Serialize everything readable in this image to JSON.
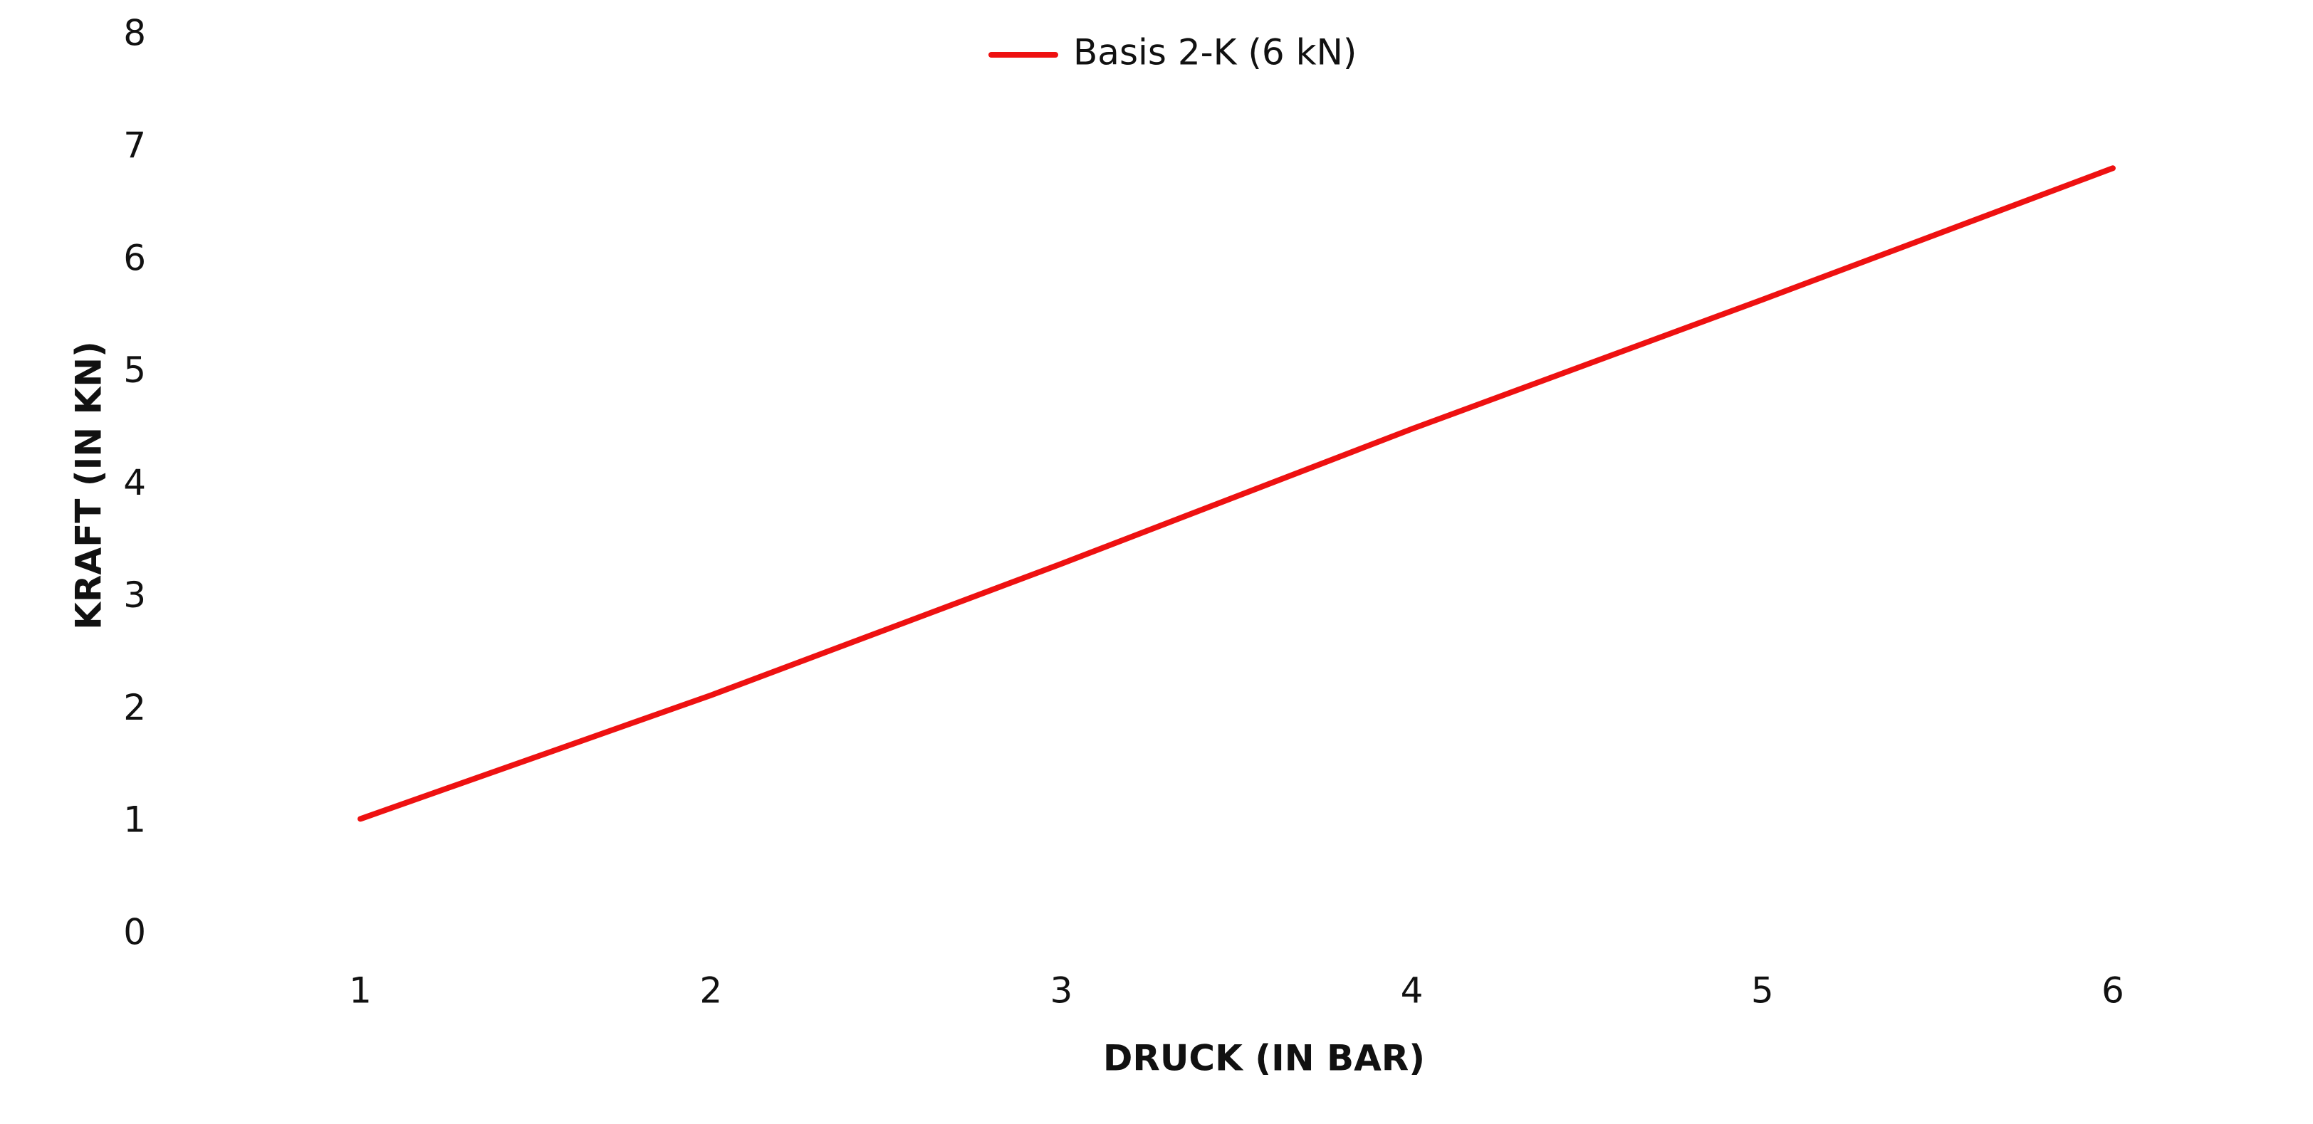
{
  "chart_data": {
    "type": "line",
    "x_label": "DRUCK (IN BAR)",
    "y_label": "KRAFT (IN KN)",
    "categories": [
      "1",
      "2",
      "3",
      "4",
      "5",
      "6"
    ],
    "series": [
      {
        "name": "Basis 2-K (6 kN)",
        "color": "#ee1111",
        "values": [
          1.03,
          2.13,
          3.3,
          4.5,
          5.65,
          6.82
        ]
      }
    ],
    "ylim": [
      0,
      8
    ],
    "yticks": [
      0,
      1,
      2,
      3,
      4,
      5,
      6,
      7,
      8
    ],
    "grid": false,
    "legend": "top"
  }
}
